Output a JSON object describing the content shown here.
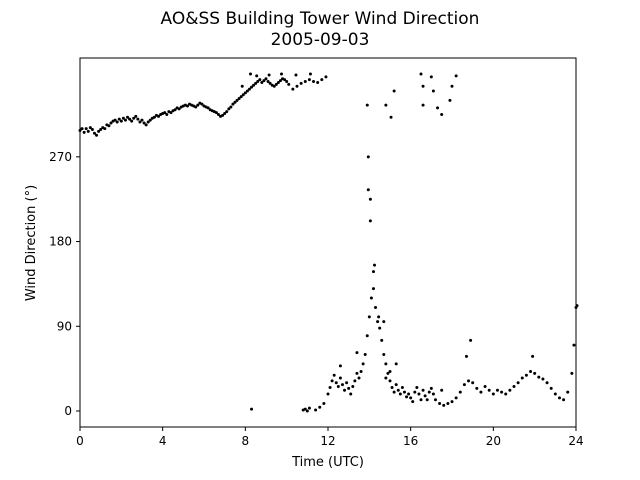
{
  "chart_data": {
    "type": "scatter",
    "title": "AO&SS Building Tower Wind Direction",
    "subtitle": "2005-09-03",
    "xlabel": "Time (UTC)",
    "ylabel": "Wind Direction (°)",
    "xlim": [
      0,
      24
    ],
    "ylim": [
      -17,
      375
    ],
    "xticks": [
      0,
      4,
      8,
      12,
      16,
      20,
      24
    ],
    "xtick_labels": [
      "0",
      "4",
      "8",
      "12",
      "16",
      "20",
      "24"
    ],
    "yticks": [
      0,
      90,
      180,
      270
    ],
    "ytick_labels": [
      "0",
      "90",
      "180",
      "270"
    ],
    "grid": false,
    "marker_color": "#000000",
    "series": [
      {
        "points": [
          [
            0.0,
            298
          ],
          [
            0.1,
            300
          ],
          [
            0.2,
            296
          ],
          [
            0.3,
            300
          ],
          [
            0.4,
            297
          ],
          [
            0.5,
            301
          ],
          [
            0.6,
            299
          ],
          [
            0.7,
            295
          ],
          [
            0.8,
            293
          ],
          [
            0.9,
            297
          ],
          [
            1.0,
            299
          ],
          [
            1.1,
            301
          ],
          [
            1.2,
            300
          ],
          [
            1.3,
            304
          ],
          [
            1.4,
            303
          ],
          [
            1.5,
            306
          ],
          [
            1.6,
            308
          ],
          [
            1.7,
            309
          ],
          [
            1.8,
            307
          ],
          [
            1.9,
            310
          ],
          [
            2.0,
            308
          ],
          [
            2.1,
            311
          ],
          [
            2.2,
            309
          ],
          [
            2.3,
            312
          ],
          [
            2.4,
            310
          ],
          [
            2.5,
            308
          ],
          [
            2.6,
            311
          ],
          [
            2.7,
            313
          ],
          [
            2.8,
            310
          ],
          [
            2.9,
            307
          ],
          [
            3.0,
            309
          ],
          [
            3.1,
            306
          ],
          [
            3.2,
            304
          ],
          [
            3.3,
            307
          ],
          [
            3.4,
            309
          ],
          [
            3.5,
            311
          ],
          [
            3.6,
            312
          ],
          [
            3.7,
            314
          ],
          [
            3.8,
            313
          ],
          [
            3.9,
            315
          ],
          [
            4.0,
            316
          ],
          [
            4.1,
            317
          ],
          [
            4.2,
            315
          ],
          [
            4.3,
            318
          ],
          [
            4.4,
            317
          ],
          [
            4.5,
            319
          ],
          [
            4.6,
            320
          ],
          [
            4.7,
            322
          ],
          [
            4.8,
            321
          ],
          [
            4.9,
            323
          ],
          [
            5.0,
            324
          ],
          [
            5.1,
            325
          ],
          [
            5.2,
            324
          ],
          [
            5.3,
            326
          ],
          [
            5.4,
            325
          ],
          [
            5.5,
            324
          ],
          [
            5.6,
            323
          ],
          [
            5.7,
            325
          ],
          [
            5.8,
            327
          ],
          [
            5.9,
            326
          ],
          [
            6.0,
            324
          ],
          [
            6.1,
            323
          ],
          [
            6.2,
            322
          ],
          [
            6.3,
            320
          ],
          [
            6.4,
            319
          ],
          [
            6.5,
            318
          ],
          [
            6.6,
            317
          ],
          [
            6.7,
            315
          ],
          [
            6.8,
            313
          ],
          [
            6.9,
            314
          ],
          [
            7.0,
            316
          ],
          [
            7.1,
            318
          ],
          [
            7.2,
            321
          ],
          [
            7.3,
            323
          ],
          [
            7.4,
            326
          ],
          [
            7.5,
            328
          ],
          [
            7.6,
            330
          ],
          [
            7.7,
            332
          ],
          [
            7.8,
            334
          ],
          [
            7.9,
            336
          ],
          [
            8.0,
            338
          ],
          [
            8.1,
            340
          ],
          [
            8.2,
            342
          ],
          [
            8.3,
            344
          ],
          [
            8.4,
            346
          ],
          [
            8.5,
            348
          ],
          [
            8.6,
            350
          ],
          [
            8.7,
            352
          ],
          [
            8.8,
            349
          ],
          [
            8.9,
            351
          ],
          [
            9.0,
            353
          ],
          [
            9.1,
            350
          ],
          [
            9.2,
            348
          ],
          [
            9.3,
            346
          ],
          [
            9.4,
            345
          ],
          [
            9.5,
            347
          ],
          [
            9.6,
            349
          ],
          [
            9.7,
            351
          ],
          [
            9.8,
            353
          ],
          [
            9.9,
            352
          ],
          [
            10.0,
            350
          ],
          [
            10.1,
            347
          ],
          [
            10.3,
            342
          ],
          [
            10.5,
            345
          ],
          [
            10.7,
            348
          ],
          [
            10.9,
            350
          ],
          [
            11.1,
            352
          ],
          [
            11.3,
            350
          ],
          [
            11.5,
            349
          ],
          [
            11.7,
            352
          ],
          [
            11.9,
            355
          ],
          [
            7.85,
            345
          ],
          [
            8.25,
            358
          ],
          [
            8.55,
            356
          ],
          [
            9.15,
            357
          ],
          [
            9.75,
            358
          ],
          [
            10.45,
            357
          ],
          [
            11.15,
            358
          ],
          [
            8.3,
            2
          ],
          [
            10.8,
            1
          ],
          [
            10.9,
            2
          ],
          [
            11.0,
            0
          ],
          [
            11.1,
            3
          ],
          [
            11.4,
            1
          ],
          [
            11.6,
            4
          ],
          [
            11.8,
            8
          ],
          [
            12.0,
            18
          ],
          [
            12.1,
            25
          ],
          [
            12.2,
            32
          ],
          [
            12.3,
            38
          ],
          [
            12.4,
            30
          ],
          [
            12.5,
            26
          ],
          [
            12.6,
            35
          ],
          [
            12.7,
            28
          ],
          [
            12.8,
            22
          ],
          [
            12.9,
            30
          ],
          [
            13.0,
            24
          ],
          [
            13.1,
            18
          ],
          [
            13.2,
            26
          ],
          [
            13.3,
            32
          ],
          [
            13.4,
            40
          ],
          [
            13.5,
            35
          ],
          [
            13.6,
            42
          ],
          [
            13.7,
            50
          ],
          [
            13.8,
            60
          ],
          [
            13.9,
            80
          ],
          [
            14.0,
            100
          ],
          [
            14.1,
            120
          ],
          [
            14.2,
            130
          ],
          [
            14.3,
            110
          ],
          [
            14.4,
            95
          ],
          [
            14.5,
            88
          ],
          [
            14.6,
            75
          ],
          [
            14.7,
            60
          ],
          [
            14.8,
            50
          ],
          [
            14.9,
            40
          ],
          [
            15.0,
            32
          ],
          [
            15.1,
            25
          ],
          [
            15.2,
            20
          ],
          [
            15.3,
            28
          ],
          [
            15.4,
            22
          ],
          [
            15.5,
            18
          ],
          [
            15.6,
            25
          ],
          [
            15.7,
            20
          ],
          [
            15.8,
            15
          ],
          [
            15.9,
            18
          ],
          [
            16.0,
            14
          ],
          [
            16.1,
            10
          ],
          [
            16.2,
            20
          ],
          [
            16.3,
            25
          ],
          [
            16.4,
            18
          ],
          [
            16.5,
            12
          ],
          [
            16.6,
            22
          ],
          [
            16.7,
            16
          ],
          [
            16.8,
            12
          ],
          [
            16.9,
            20
          ],
          [
            17.0,
            24
          ],
          [
            17.1,
            18
          ],
          [
            17.2,
            12
          ],
          [
            17.4,
            8
          ],
          [
            17.6,
            6
          ],
          [
            17.8,
            8
          ],
          [
            18.0,
            10
          ],
          [
            18.2,
            14
          ],
          [
            18.4,
            20
          ],
          [
            18.6,
            28
          ],
          [
            18.8,
            32
          ],
          [
            19.0,
            30
          ],
          [
            19.2,
            24
          ],
          [
            19.4,
            20
          ],
          [
            19.6,
            26
          ],
          [
            19.8,
            22
          ],
          [
            20.0,
            18
          ],
          [
            20.2,
            22
          ],
          [
            20.4,
            20
          ],
          [
            20.6,
            18
          ],
          [
            20.8,
            22
          ],
          [
            21.0,
            26
          ],
          [
            21.2,
            30
          ],
          [
            21.4,
            35
          ],
          [
            21.6,
            38
          ],
          [
            21.8,
            42
          ],
          [
            22.0,
            40
          ],
          [
            22.2,
            36
          ],
          [
            22.4,
            34
          ],
          [
            22.6,
            30
          ],
          [
            22.8,
            24
          ],
          [
            23.0,
            18
          ],
          [
            23.2,
            14
          ],
          [
            23.4,
            12
          ],
          [
            23.6,
            20
          ],
          [
            23.8,
            40
          ],
          [
            23.9,
            70
          ],
          [
            24.0,
            110
          ],
          [
            24.05,
            112
          ],
          [
            13.4,
            62
          ],
          [
            12.6,
            48
          ],
          [
            13.9,
            325
          ],
          [
            13.95,
            270
          ],
          [
            13.95,
            235
          ],
          [
            14.05,
            225
          ],
          [
            14.05,
            202
          ],
          [
            14.2,
            148
          ],
          [
            14.25,
            155
          ],
          [
            14.45,
            100
          ],
          [
            14.7,
            95
          ],
          [
            14.8,
            325
          ],
          [
            15.2,
            340
          ],
          [
            15.05,
            312
          ],
          [
            16.5,
            358
          ],
          [
            16.6,
            345
          ],
          [
            16.6,
            325
          ],
          [
            17.0,
            355
          ],
          [
            17.1,
            340
          ],
          [
            17.3,
            322
          ],
          [
            17.5,
            315
          ],
          [
            17.9,
            330
          ],
          [
            18.0,
            345
          ],
          [
            18.2,
            356
          ],
          [
            14.8,
            35
          ],
          [
            15.0,
            42
          ],
          [
            15.3,
            50
          ],
          [
            17.5,
            22
          ],
          [
            18.7,
            58
          ],
          [
            18.9,
            75
          ],
          [
            21.9,
            58
          ]
        ]
      }
    ]
  }
}
